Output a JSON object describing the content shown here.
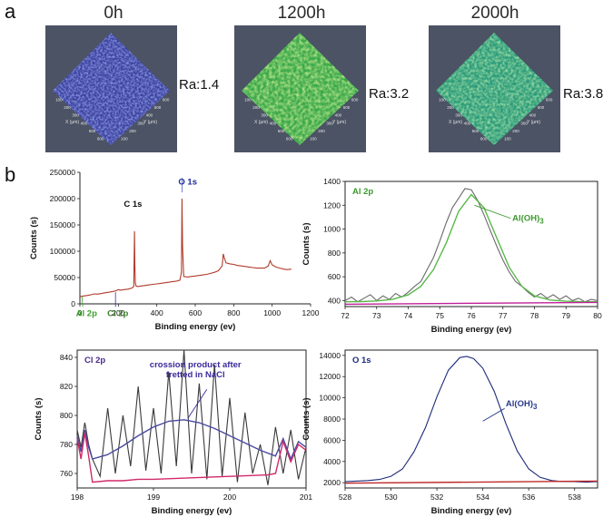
{
  "panel_a": {
    "label": "a",
    "maps": [
      {
        "title": "0h",
        "ra": "Ra:1.4",
        "palette": "purple",
        "x_axis": "X (μm)",
        "y_axis": "Y (μm)",
        "ticks": [
          "100",
          "200",
          "300",
          "400",
          "500",
          "600"
        ]
      },
      {
        "title": "1200h",
        "ra": "Ra:3.2",
        "palette": "green",
        "x_axis": "X (μm)",
        "y_axis": "Y (μm)",
        "ticks": [
          "100",
          "200",
          "300",
          "400",
          "500",
          "600"
        ]
      },
      {
        "title": "2000h",
        "ra": "Ra:3.8",
        "palette": "teal",
        "x_axis": "X (μm)",
        "y_axis": "Y (μm)",
        "ticks": [
          "100",
          "200",
          "300",
          "400",
          "500",
          "600"
        ]
      }
    ]
  },
  "panel_b": {
    "label": "b"
  },
  "chart_data": [
    {
      "type": "line",
      "id": "survey",
      "title": "",
      "xlabel": "Binding energy (ev)",
      "ylabel": "Counts (s)",
      "xlim": [
        0,
        1200
      ],
      "ylim": [
        0,
        250000
      ],
      "xticks": [
        0,
        200,
        400,
        600,
        800,
        1000,
        1200
      ],
      "yticks": [
        0,
        50000,
        100000,
        150000,
        200000,
        250000
      ],
      "annotations": [
        {
          "text": "O 1s",
          "x": 531,
          "y": 213000,
          "color": "#1c2a9c"
        },
        {
          "text": "C 1s",
          "x": 285,
          "y": 150000,
          "color": "#111111"
        },
        {
          "text": "Cl 2p",
          "x": 199,
          "y": 8000,
          "color": "#3a7a2a"
        },
        {
          "text": "Al 2p",
          "x": 74,
          "y": 8000,
          "color": "#3aa02a"
        }
      ],
      "series": [
        {
          "name": "survey",
          "color": "#b03a2a",
          "x": [
            0,
            20,
            40,
            60,
            74,
            90,
            110,
            130,
            150,
            170,
            190,
            199,
            210,
            230,
            250,
            270,
            280,
            284,
            286,
            288,
            292,
            300,
            320,
            340,
            360,
            380,
            400,
            420,
            440,
            460,
            480,
            500,
            520,
            528,
            531,
            534,
            540,
            560,
            580,
            600,
            620,
            640,
            660,
            680,
            700,
            720,
            740,
            746,
            752,
            760,
            780,
            800,
            820,
            840,
            860,
            880,
            900,
            920,
            940,
            960,
            980,
            990,
            994,
            1000,
            1020,
            1040,
            1060,
            1080,
            1100
          ],
          "y": [
            14000,
            15000,
            16000,
            17500,
            19000,
            18500,
            19500,
            21000,
            22000,
            23500,
            25000,
            27000,
            26000,
            27000,
            28000,
            30000,
            33000,
            138000,
            75000,
            40000,
            34000,
            33000,
            34000,
            35000,
            36000,
            37000,
            38000,
            39000,
            40000,
            41000,
            42000,
            43000,
            45000,
            60000,
            200000,
            110000,
            52000,
            51000,
            52000,
            53000,
            54000,
            55000,
            56000,
            58000,
            60000,
            63000,
            72000,
            95000,
            86000,
            78000,
            76000,
            75000,
            73000,
            72000,
            71000,
            70000,
            69000,
            68000,
            68000,
            68000,
            72000,
            82000,
            79000,
            74000,
            70000,
            68000,
            66000,
            65000,
            66000
          ]
        }
      ]
    },
    {
      "type": "line",
      "id": "al2p",
      "title": "Al 2p",
      "xlabel": "Binding energy (ev)",
      "ylabel": "Counts (s)",
      "xlim": [
        72,
        80
      ],
      "ylim": [
        350,
        1400
      ],
      "xticks": [
        72,
        73,
        74,
        75,
        76,
        77,
        78,
        79,
        80
      ],
      "yticks": [
        400,
        600,
        800,
        1000,
        1200,
        1400
      ],
      "annotations": [
        {
          "text": "Al(OH)",
          "sub": "3",
          "x": 77.3,
          "y": 1070,
          "color": "#3a9a2a"
        }
      ],
      "series": [
        {
          "name": "raw",
          "color": "#6a6a6a",
          "x": [
            72,
            72.2,
            72.4,
            72.6,
            72.8,
            73,
            73.2,
            73.4,
            73.6,
            73.8,
            74,
            74.2,
            74.4,
            74.6,
            74.8,
            75,
            75.2,
            75.4,
            75.6,
            75.8,
            76,
            76.2,
            76.4,
            76.6,
            76.8,
            77,
            77.2,
            77.4,
            77.6,
            77.8,
            78,
            78.2,
            78.4,
            78.6,
            78.8,
            79,
            79.2,
            79.4,
            79.6,
            79.8,
            80
          ],
          "y": [
            400,
            430,
            390,
            420,
            450,
            400,
            440,
            410,
            460,
            430,
            470,
            520,
            560,
            660,
            760,
            900,
            1050,
            1180,
            1260,
            1340,
            1330,
            1240,
            1120,
            990,
            860,
            740,
            640,
            560,
            520,
            470,
            430,
            460,
            420,
            450,
            410,
            440,
            400,
            420,
            390,
            410,
            400
          ]
        },
        {
          "name": "fit",
          "color": "#5ab84a",
          "x": [
            72,
            72.5,
            73,
            73.5,
            74,
            74.4,
            74.8,
            75.2,
            75.6,
            76,
            76.4,
            76.8,
            77.2,
            77.6,
            78,
            78.5,
            79,
            79.5,
            80
          ],
          "y": [
            390,
            392,
            397,
            410,
            448,
            520,
            660,
            880,
            1150,
            1290,
            1180,
            930,
            680,
            520,
            440,
            405,
            395,
            391,
            390
          ]
        },
        {
          "name": "baseline",
          "color": "#c0209a",
          "x": [
            72,
            80
          ],
          "y": [
            370,
            385
          ]
        }
      ]
    },
    {
      "type": "line",
      "id": "cl2p",
      "title": "Cl 2p",
      "xlabel": "Binding energy (ev)",
      "ylabel": "Counts (s)",
      "xlim": [
        198,
        201
      ],
      "ylim": [
        750,
        845
      ],
      "xticks": [
        198,
        199,
        200,
        201
      ],
      "yticks": [
        760,
        780,
        800,
        820,
        840
      ],
      "annotations": [
        {
          "text": "crossion product after fretted in NaCl",
          "x": 199.55,
          "y": 833,
          "color": "#3a2a9a"
        }
      ],
      "series": [
        {
          "name": "raw",
          "color": "#3a3a3a",
          "x": [
            198,
            198.05,
            198.1,
            198.15,
            198.2,
            198.3,
            198.4,
            198.5,
            198.6,
            198.7,
            198.8,
            198.9,
            199,
            199.1,
            199.2,
            199.3,
            199.4,
            199.5,
            199.6,
            199.7,
            199.8,
            199.9,
            200,
            200.1,
            200.2,
            200.3,
            200.4,
            200.5,
            200.6,
            200.7,
            200.8,
            200.9,
            201
          ],
          "y": [
            790,
            778,
            795,
            780,
            770,
            758,
            805,
            760,
            800,
            765,
            820,
            762,
            805,
            760,
            830,
            765,
            845,
            760,
            822,
            756,
            835,
            758,
            812,
            754,
            802,
            760,
            780,
            752,
            792,
            760,
            790,
            756,
            778
          ]
        },
        {
          "name": "envelope",
          "color": "#4a4aa0",
          "x": [
            198,
            198.05,
            198.1,
            198.15,
            198.2,
            198.4,
            198.6,
            198.8,
            199,
            199.2,
            199.4,
            199.6,
            199.8,
            200,
            200.2,
            200.4,
            200.6,
            200.7,
            200.8,
            200.9,
            201
          ],
          "y": [
            786,
            775,
            790,
            778,
            770,
            773,
            779,
            786,
            792,
            796,
            797,
            795,
            791,
            786,
            781,
            776,
            772,
            784,
            770,
            782,
            778
          ]
        },
        {
          "name": "baseline",
          "color": "#d02a6a",
          "x": [
            198,
            198.05,
            198.1,
            198.15,
            198.2,
            198.4,
            198.6,
            198.8,
            199,
            199.5,
            200,
            200.5,
            200.6,
            200.7,
            200.8,
            200.9,
            201
          ],
          "y": [
            784,
            770,
            788,
            772,
            754,
            755,
            755,
            756,
            756,
            757,
            758,
            759,
            760,
            782,
            768,
            780,
            776
          ]
        }
      ]
    },
    {
      "type": "line",
      "id": "o1s",
      "title": "O 1s",
      "xlabel": "Binding energy (ev)",
      "ylabel": "Counts (s)",
      "xlim": [
        528,
        539
      ],
      "ylim": [
        1500,
        14500
      ],
      "xticks": [
        528,
        530,
        532,
        534,
        536,
        538
      ],
      "yticks": [
        2000,
        4000,
        6000,
        8000,
        10000,
        12000,
        14000
      ],
      "annotations": [
        {
          "text": "Al(OH)",
          "sub": "3",
          "x": 535.0,
          "y": 9200,
          "color": "#2a3a8a"
        }
      ],
      "series": [
        {
          "name": "raw",
          "color": "#1c2a7a",
          "x": [
            528,
            528.5,
            529,
            529.5,
            530,
            530.5,
            531,
            531.5,
            532,
            532.5,
            533,
            533.3,
            533.6,
            534,
            534.5,
            535,
            535.5,
            536,
            536.5,
            537,
            537.5,
            538,
            538.5,
            539
          ],
          "y": [
            2100,
            2150,
            2200,
            2300,
            2600,
            3300,
            4900,
            7200,
            10100,
            12600,
            13800,
            13900,
            13700,
            12800,
            10600,
            7600,
            5000,
            3300,
            2500,
            2200,
            2100,
            2100,
            2050,
            2100
          ]
        },
        {
          "name": "baseline",
          "color": "#c02a2a",
          "x": [
            528,
            539
          ],
          "y": [
            1950,
            2150
          ]
        }
      ]
    }
  ]
}
